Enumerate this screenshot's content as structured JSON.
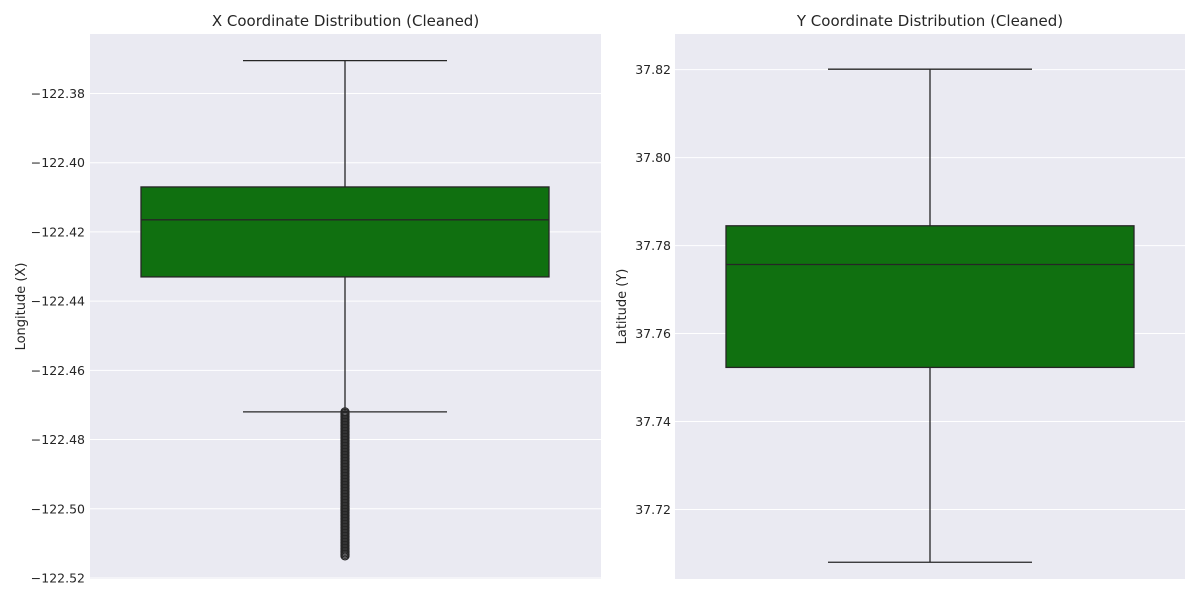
{
  "colors": {
    "plot_background": "#eaeaf2",
    "grid": "#ffffff",
    "box_fill": "#107010",
    "line": "#262626"
  },
  "chart_data": [
    {
      "type": "box",
      "title": "X Coordinate Distribution (Cleaned)",
      "ylabel": "Longitude (X)",
      "ylim": [
        -122.5203,
        -122.3628
      ],
      "yticks": [
        -122.52,
        -122.5,
        -122.48,
        -122.46,
        -122.44,
        -122.42,
        -122.4,
        -122.38
      ],
      "ytick_labels": [
        "−122.52",
        "−122.50",
        "−122.48",
        "−122.46",
        "−122.44",
        "−122.42",
        "−122.40",
        "−122.38"
      ],
      "grid": true,
      "box": {
        "whisker_low": -122.472,
        "q1": -122.433,
        "median": -122.4165,
        "q3": -122.407,
        "whisker_high": -122.3705
      },
      "outliers_range": [
        -122.514,
        -122.472
      ]
    },
    {
      "type": "box",
      "title": "Y Coordinate Distribution (Cleaned)",
      "ylabel": "Latitude (Y)",
      "ylim": [
        37.7042,
        37.8281
      ],
      "yticks": [
        37.72,
        37.74,
        37.76,
        37.78,
        37.8,
        37.82
      ],
      "ytick_labels": [
        "37.72",
        "37.74",
        "37.76",
        "37.78",
        "37.80",
        "37.82"
      ],
      "grid": true,
      "box": {
        "whisker_low": 37.708,
        "q1": 37.7523,
        "median": 37.7757,
        "q3": 37.7845,
        "whisker_high": 37.8201
      },
      "outliers_range": null
    }
  ]
}
